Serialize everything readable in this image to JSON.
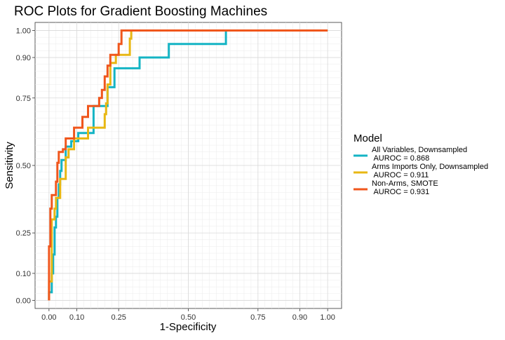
{
  "chart_data": {
    "type": "line",
    "title": "ROC Plots for Gradient Boosting Machines",
    "xlabel": "1-Specificity",
    "ylabel": "Sensitivity",
    "xlim": [
      -0.05,
      1.05
    ],
    "ylim": [
      -0.03,
      1.03
    ],
    "x_ticks": [
      0.0,
      0.1,
      0.25,
      0.5,
      0.75,
      0.9,
      1.0
    ],
    "x_tick_labels": [
      "0.00",
      "0.10",
      "0.25",
      "0.50",
      "0.75",
      "0.90",
      "1.00"
    ],
    "y_ticks": [
      0.0,
      0.1,
      0.25,
      0.5,
      0.75,
      0.9,
      1.0
    ],
    "y_tick_labels": [
      "0.00",
      "0.10",
      "0.25",
      "0.50",
      "0.75",
      "0.90",
      "1.00"
    ],
    "grid": true,
    "legend": {
      "title": "Model",
      "placement": "right"
    },
    "series": [
      {
        "name": "All Variables, Downsampled\n AUROC = 0.868",
        "color": "#14b4c4",
        "points": [
          [
            0,
            0
          ],
          [
            0,
            0.03
          ],
          [
            0.01,
            0.03
          ],
          [
            0.01,
            0.1
          ],
          [
            0.015,
            0.1
          ],
          [
            0.015,
            0.17
          ],
          [
            0.02,
            0.17
          ],
          [
            0.02,
            0.27
          ],
          [
            0.025,
            0.27
          ],
          [
            0.025,
            0.31
          ],
          [
            0.03,
            0.31
          ],
          [
            0.03,
            0.38
          ],
          [
            0.035,
            0.38
          ],
          [
            0.035,
            0.43
          ],
          [
            0.04,
            0.43
          ],
          [
            0.04,
            0.48
          ],
          [
            0.045,
            0.48
          ],
          [
            0.045,
            0.52
          ],
          [
            0.06,
            0.52
          ],
          [
            0.06,
            0.57
          ],
          [
            0.08,
            0.57
          ],
          [
            0.08,
            0.59
          ],
          [
            0.105,
            0.59
          ],
          [
            0.105,
            0.62
          ],
          [
            0.16,
            0.62
          ],
          [
            0.16,
            0.72
          ],
          [
            0.21,
            0.72
          ],
          [
            0.21,
            0.79
          ],
          [
            0.235,
            0.79
          ],
          [
            0.235,
            0.86
          ],
          [
            0.325,
            0.86
          ],
          [
            0.325,
            0.9
          ],
          [
            0.43,
            0.9
          ],
          [
            0.43,
            0.95
          ],
          [
            0.635,
            0.95
          ],
          [
            0.635,
            1.0
          ],
          [
            1.0,
            1.0
          ]
        ]
      },
      {
        "name": "Arms Imports Only, Downsampled\n AUROC = 0.911",
        "color": "#e8b713",
        "points": [
          [
            0,
            0
          ],
          [
            0,
            0.07
          ],
          [
            0.01,
            0.07
          ],
          [
            0.01,
            0.3
          ],
          [
            0.02,
            0.3
          ],
          [
            0.02,
            0.34
          ],
          [
            0.025,
            0.34
          ],
          [
            0.025,
            0.38
          ],
          [
            0.04,
            0.38
          ],
          [
            0.04,
            0.45
          ],
          [
            0.06,
            0.45
          ],
          [
            0.06,
            0.53
          ],
          [
            0.07,
            0.53
          ],
          [
            0.07,
            0.56
          ],
          [
            0.09,
            0.56
          ],
          [
            0.09,
            0.6
          ],
          [
            0.14,
            0.6
          ],
          [
            0.14,
            0.64
          ],
          [
            0.2,
            0.64
          ],
          [
            0.2,
            0.69
          ],
          [
            0.205,
            0.69
          ],
          [
            0.205,
            0.73
          ],
          [
            0.21,
            0.73
          ],
          [
            0.21,
            0.8
          ],
          [
            0.22,
            0.8
          ],
          [
            0.22,
            0.88
          ],
          [
            0.24,
            0.88
          ],
          [
            0.24,
            0.91
          ],
          [
            0.29,
            0.91
          ],
          [
            0.29,
            0.97
          ],
          [
            0.295,
            0.97
          ],
          [
            0.295,
            1.0
          ],
          [
            1.0,
            1.0
          ]
        ]
      },
      {
        "name": "Non-Arms, SMOTE\n AUROC = 0.931",
        "color": "#f0561c",
        "points": [
          [
            0,
            0
          ],
          [
            0,
            0.2
          ],
          [
            0.005,
            0.2
          ],
          [
            0.005,
            0.34
          ],
          [
            0.01,
            0.34
          ],
          [
            0.01,
            0.39
          ],
          [
            0.025,
            0.39
          ],
          [
            0.025,
            0.44
          ],
          [
            0.03,
            0.44
          ],
          [
            0.03,
            0.51
          ],
          [
            0.035,
            0.51
          ],
          [
            0.035,
            0.55
          ],
          [
            0.05,
            0.55
          ],
          [
            0.05,
            0.56
          ],
          [
            0.06,
            0.56
          ],
          [
            0.06,
            0.6
          ],
          [
            0.09,
            0.6
          ],
          [
            0.09,
            0.64
          ],
          [
            0.12,
            0.64
          ],
          [
            0.12,
            0.68
          ],
          [
            0.14,
            0.68
          ],
          [
            0.14,
            0.72
          ],
          [
            0.18,
            0.72
          ],
          [
            0.18,
            0.75
          ],
          [
            0.19,
            0.75
          ],
          [
            0.19,
            0.78
          ],
          [
            0.2,
            0.78
          ],
          [
            0.2,
            0.83
          ],
          [
            0.21,
            0.83
          ],
          [
            0.21,
            0.87
          ],
          [
            0.22,
            0.87
          ],
          [
            0.22,
            0.91
          ],
          [
            0.25,
            0.91
          ],
          [
            0.25,
            0.95
          ],
          [
            0.26,
            0.95
          ],
          [
            0.26,
            1.0
          ],
          [
            1.0,
            1.0
          ]
        ]
      }
    ]
  }
}
